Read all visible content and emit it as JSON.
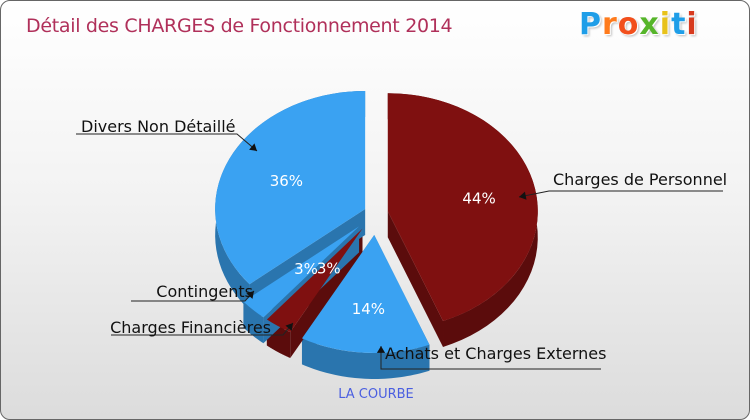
{
  "header": {
    "title": "Détail des CHARGES de Fonctionnement 2014",
    "brand": "Proxiti",
    "brand_colors": [
      "#1f9ee8",
      "#ff7b1c",
      "#f24f1c",
      "#56b52a",
      "#e8c21a",
      "#1f9ee8",
      "#d73a1e"
    ]
  },
  "chart_data": {
    "type": "pie",
    "title": "Détail des CHARGES de Fonctionnement 2014",
    "subtitle": "LA COURBE",
    "series": [
      {
        "name": "Charges de Personnel",
        "value": 44,
        "label": "44%",
        "color": "#7f1010"
      },
      {
        "name": "Achats et Charges Externes",
        "value": 14,
        "label": "14%",
        "color": "#3aa2f2"
      },
      {
        "name": "Charges Financières",
        "value": 3,
        "label": "3%",
        "color": "#7f1010"
      },
      {
        "name": "Contingents",
        "value": 3,
        "label": "3%",
        "color": "#3aa2f2"
      },
      {
        "name": "Divers Non Détaillé",
        "value": 36,
        "label": "36%",
        "color": "#3aa2f2"
      }
    ],
    "legend": "callouts"
  }
}
